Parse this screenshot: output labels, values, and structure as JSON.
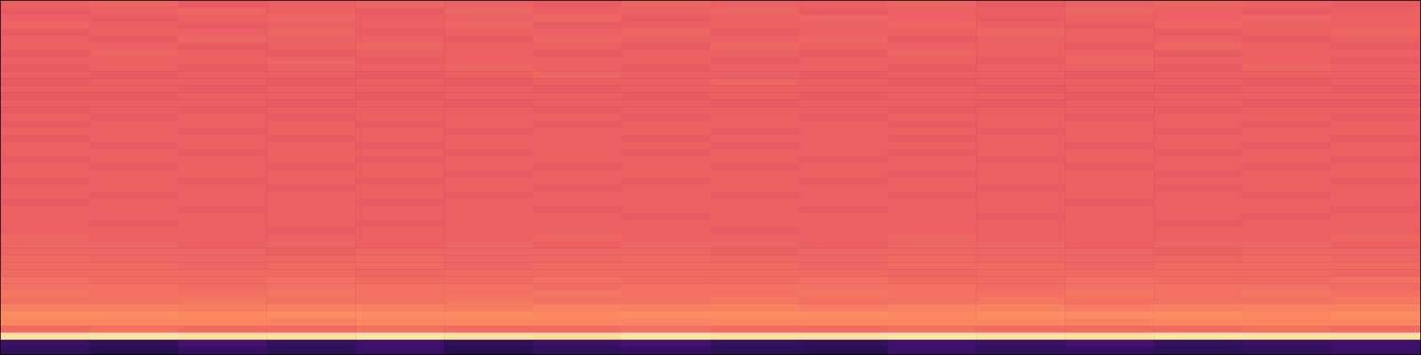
{
  "chart_data": {
    "type": "heatmap",
    "color": "magma",
    "grid": false,
    "tick_labels": false,
    "zlim": [
      -80,
      0
    ],
    "cells": [
      [
        -27,
        -26,
        -28,
        -27,
        -26,
        -27,
        -28,
        -26,
        -27,
        -27,
        -26,
        -28,
        -27,
        -26,
        -27,
        -28
      ],
      [
        -28,
        -27,
        -26,
        -27,
        -28,
        -26,
        -27,
        -27,
        -26,
        -28,
        -27,
        -27,
        -26,
        -27,
        -28,
        -27
      ],
      [
        -27,
        -28,
        -27,
        -26,
        -27,
        -27,
        -26,
        -28,
        -27,
        -26,
        -27,
        -28,
        -27,
        -27,
        -26,
        -27
      ],
      [
        -26,
        -27,
        -28,
        -27,
        -27,
        -26,
        -28,
        -27,
        -27,
        -27,
        -26,
        -27,
        -28,
        -26,
        -27,
        -27
      ],
      [
        -28,
        -27,
        -27,
        -26,
        -28,
        -27,
        -27,
        -26,
        -28,
        -27,
        -27,
        -26,
        -27,
        -28,
        -27,
        -26
      ],
      [
        -27,
        -28,
        -26,
        -27,
        -27,
        -28,
        -26,
        -27,
        -27,
        -26,
        -28,
        -27,
        -27,
        -27,
        -28,
        -27
      ],
      [
        -27,
        -27,
        -28,
        -27,
        -26,
        -27,
        -27,
        -28,
        -26,
        -27,
        -27,
        -27,
        -28,
        -26,
        -27,
        -28
      ],
      [
        -28,
        -26,
        -27,
        -28,
        -27,
        -27,
        -28,
        -27,
        -27,
        -28,
        -26,
        -27,
        -27,
        -28,
        -27,
        -27
      ],
      [
        -27,
        -27,
        -27,
        -26,
        -28,
        -27,
        -27,
        -27,
        -28,
        -27,
        -27,
        -28,
        -26,
        -27,
        -27,
        -28
      ],
      [
        -28,
        -27,
        -28,
        -27,
        -27,
        -26,
        -27,
        -28,
        -27,
        -27,
        -28,
        -27,
        -27,
        -28,
        -26,
        -27
      ],
      [
        -27,
        -28,
        -27,
        -27,
        -28,
        -27,
        -26,
        -27,
        -27,
        -28,
        -27,
        -27,
        -28,
        -27,
        -27,
        -27
      ],
      [
        -28,
        -27,
        -27,
        -28,
        -27,
        -28,
        -27,
        -27,
        -26,
        -27,
        -28,
        -27,
        -27,
        -27,
        -28,
        -27
      ],
      [
        -27,
        -27,
        -28,
        -27,
        -27,
        -27,
        -28,
        -27,
        -27,
        -27,
        -27,
        -28,
        -27,
        -28,
        -27,
        -28
      ],
      [
        -28,
        -28,
        -27,
        -27,
        -28,
        -27,
        -27,
        -28,
        -27,
        -28,
        -27,
        -27,
        -28,
        -27,
        -27,
        -27
      ],
      [
        -27,
        -27,
        -27,
        -28,
        -27,
        -28,
        -27,
        -27,
        -28,
        -27,
        -27,
        -28,
        -27,
        -27,
        -28,
        -28
      ],
      [
        -28,
        -27,
        -28,
        -27,
        -27,
        -27,
        -28,
        -27,
        -27,
        -27,
        -28,
        -27,
        -27,
        -28,
        -27,
        -27
      ],
      [
        -27,
        -28,
        -27,
        -28,
        -27,
        -27,
        -27,
        -28,
        -27,
        -28,
        -27,
        -27,
        -28,
        -27,
        -27,
        -28
      ],
      [
        -28,
        -27,
        -27,
        -27,
        -28,
        -27,
        -28,
        -27,
        -27,
        -27,
        -28,
        -27,
        -27,
        -27,
        -28,
        -27
      ],
      [
        -27,
        -27,
        -28,
        -27,
        -27,
        -28,
        -27,
        -27,
        -28,
        -27,
        -27,
        -28,
        -27,
        -28,
        -27,
        -27
      ],
      [
        -28,
        -27,
        -27,
        -28,
        -27,
        -27,
        -27,
        -28,
        -27,
        -27,
        -28,
        -27,
        -27,
        -27,
        -27,
        -28
      ],
      [
        -27,
        -28,
        -27,
        -27,
        -28,
        -27,
        -27,
        -27,
        -28,
        -27,
        -27,
        -27,
        -28,
        -27,
        -28,
        -27
      ],
      [
        -27,
        -27,
        -28,
        -27,
        -27,
        -28,
        -27,
        -28,
        -27,
        -27,
        -28,
        -27,
        -27,
        -28,
        -27,
        -27
      ],
      [
        -28,
        -27,
        -27,
        -27,
        -28,
        -27,
        -27,
        -27,
        -27,
        -28,
        -27,
        -28,
        -27,
        -27,
        -27,
        -28
      ],
      [
        -27,
        -28,
        -27,
        -28,
        -27,
        -27,
        -28,
        -27,
        -28,
        -27,
        -27,
        -27,
        -28,
        -27,
        -28,
        -27
      ],
      [
        -27,
        -27,
        -27,
        -27,
        -27,
        -28,
        -27,
        -27,
        -27,
        -27,
        -28,
        -27,
        -27,
        -28,
        -27,
        -27
      ],
      [
        -28,
        -27,
        -28,
        -27,
        -28,
        -27,
        -27,
        -28,
        -27,
        -28,
        -27,
        -27,
        -27,
        -27,
        -27,
        -28
      ],
      [
        -27,
        -27,
        -27,
        -28,
        -27,
        -27,
        -28,
        -27,
        -27,
        -27,
        -27,
        -28,
        -27,
        -28,
        -27,
        -27
      ],
      [
        -27,
        -28,
        -27,
        -27,
        -27,
        -28,
        -27,
        -27,
        -28,
        -27,
        -28,
        -27,
        -27,
        -27,
        -28,
        -27
      ],
      [
        -28,
        -27,
        -27,
        -27,
        -28,
        -27,
        -27,
        -27,
        -27,
        -27,
        -27,
        -27,
        -28,
        -27,
        -27,
        -27
      ],
      [
        -27,
        -27,
        -28,
        -27,
        -27,
        -27,
        -28,
        -27,
        -27,
        -28,
        -27,
        -27,
        -27,
        -27,
        -27,
        -28
      ],
      [
        -27,
        -27,
        -27,
        -27,
        -27,
        -27,
        -27,
        -28,
        -27,
        -27,
        -27,
        -28,
        -27,
        -27,
        -28,
        -27
      ],
      [
        -27,
        -28,
        -27,
        -27,
        -28,
        -27,
        -27,
        -27,
        -27,
        -27,
        -27,
        -27,
        -27,
        -28,
        -27,
        -27
      ],
      [
        -27,
        -27,
        -27,
        -28,
        -27,
        -27,
        -27,
        -27,
        -28,
        -27,
        -27,
        -27,
        -27,
        -27,
        -27,
        -27
      ],
      [
        -26,
        -27,
        -27,
        -27,
        -27,
        -27,
        -26,
        -27,
        -27,
        -27,
        -26,
        -27,
        -27,
        -27,
        -27,
        -26
      ],
      [
        -26,
        -26,
        -27,
        -26,
        -27,
        -26,
        -27,
        -26,
        -26,
        -27,
        -26,
        -26,
        -27,
        -26,
        -26,
        -27
      ],
      [
        -26,
        -26,
        -26,
        -27,
        -26,
        -26,
        -26,
        -26,
        -27,
        -26,
        -26,
        -26,
        -26,
        -27,
        -26,
        -26
      ],
      [
        -25,
        -26,
        -26,
        -26,
        -25,
        -26,
        -26,
        -25,
        -26,
        -26,
        -25,
        -26,
        -26,
        -26,
        -25,
        -26
      ],
      [
        -25,
        -25,
        -26,
        -25,
        -25,
        -26,
        -25,
        -25,
        -25,
        -26,
        -25,
        -25,
        -26,
        -25,
        -25,
        -25
      ],
      [
        -25,
        -25,
        -25,
        -25,
        -26,
        -25,
        -25,
        -25,
        -25,
        -25,
        -26,
        -25,
        -25,
        -25,
        -25,
        -26
      ],
      [
        -24,
        -25,
        -25,
        -24,
        -25,
        -25,
        -24,
        -25,
        -25,
        -24,
        -25,
        -25,
        -24,
        -25,
        -25,
        -24
      ],
      [
        -24,
        -24,
        -25,
        -24,
        -24,
        -24,
        -25,
        -24,
        -24,
        -24,
        -24,
        -25,
        -24,
        -24,
        -24,
        -25
      ],
      [
        -23,
        -24,
        -24,
        -23,
        -24,
        -24,
        -23,
        -24,
        -24,
        -23,
        -24,
        -24,
        -23,
        -24,
        -23,
        -24
      ],
      [
        -24,
        -24,
        -23,
        -24,
        -24,
        -23,
        -24,
        -24,
        -23,
        -24,
        -24,
        -23,
        -24,
        -24,
        -24,
        -23
      ],
      [
        -21,
        -21,
        -22,
        -21,
        -21,
        -22,
        -21,
        -21,
        -21,
        -22,
        -21,
        -21,
        -22,
        -21,
        -21,
        -21
      ],
      [
        -19,
        -19,
        -20,
        -19,
        -19,
        -19,
        -20,
        -19,
        -19,
        -19,
        -20,
        -19,
        -19,
        -19,
        -20,
        -19
      ],
      [
        -20,
        -20,
        -20,
        -21,
        -20,
        -20,
        -20,
        -21,
        -20,
        -20,
        -20,
        -20,
        -21,
        -20,
        -20,
        -20
      ],
      [
        -25,
        -24,
        -25,
        -25,
        -24,
        -25,
        -25,
        -24,
        -25,
        -25,
        -24,
        -25,
        -25,
        -25,
        -24,
        -25
      ],
      [
        -5,
        -4,
        -5,
        -5,
        -4,
        -5,
        -6,
        -4,
        -5,
        -5,
        -4,
        -5,
        -5,
        -4,
        -5,
        -5
      ],
      [
        -64,
        -66,
        -62,
        -65,
        -63,
        -66,
        -64,
        -62,
        -65,
        -66,
        -63,
        -64,
        -62,
        -65,
        -64,
        -63
      ],
      [
        -66,
        -68,
        -65,
        -67,
        -64,
        -68,
        -66,
        -65,
        -67,
        -68,
        -64,
        -66,
        -65,
        -67,
        -66,
        -64
      ]
    ]
  }
}
